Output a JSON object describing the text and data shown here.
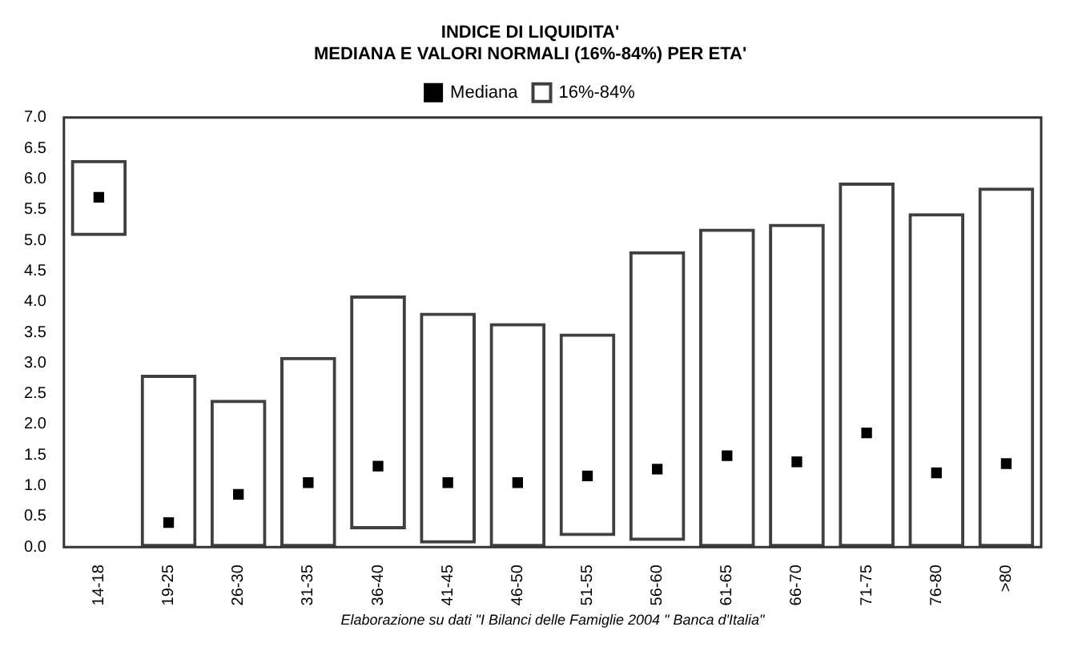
{
  "chart_data": {
    "type": "bar",
    "title": "INDICE DI LIQUIDITA'",
    "subtitle": "MEDIANA E VALORI NORMALI (16%-84%) PER ETA'",
    "categories": [
      "14-18",
      "19-25",
      "26-30",
      "31-35",
      "36-40",
      "41-45",
      "46-50",
      "51-55",
      "56-60",
      "61-65",
      "66-70",
      "71-75",
      "76-80",
      ">80"
    ],
    "series": [
      {
        "name": "Mediana",
        "type": "scatter",
        "color": "#000000",
        "marker": "square",
        "x": [
          "14-18",
          "19-25",
          "26-30",
          "31-35",
          "36-40",
          "41-45",
          "46-50",
          "51-55",
          "56-60",
          "61-65",
          "66-70",
          "71-75",
          "76-80",
          ">80"
        ],
        "values": [
          5.7,
          0.4,
          0.86,
          1.05,
          1.32,
          1.05,
          1.05,
          1.16,
          1.27,
          1.49,
          1.39,
          1.86,
          1.21,
          1.36
        ]
      },
      {
        "name": "16%-84%",
        "color": "#404040",
        "base": [
          5.07,
          0,
          0,
          0,
          0.29,
          0.06,
          0,
          0.18,
          0.1,
          0,
          0,
          0,
          0,
          0
        ],
        "values": [
          1.24,
          2.81,
          2.4,
          3.1,
          3.81,
          3.76,
          3.65,
          3.3,
          4.72,
          5.19,
          5.27,
          5.94,
          5.44,
          5.86
        ]
      }
    ],
    "ylim": [
      0,
      7
    ],
    "yticks": [
      {
        "value": 0,
        "label": "0.0"
      },
      {
        "value": 0.5,
        "label": "0.5"
      },
      {
        "value": 1,
        "label": "1.0"
      },
      {
        "value": 1.5,
        "label": "1.5"
      },
      {
        "value": 2,
        "label": "2.0"
      },
      {
        "value": 2.5,
        "label": "2.5"
      },
      {
        "value": 3,
        "label": "3.0"
      },
      {
        "value": 3.5,
        "label": "3.5"
      },
      {
        "value": 4,
        "label": "4.0"
      },
      {
        "value": 4.5,
        "label": "4.5"
      },
      {
        "value": 5,
        "label": "5.0"
      },
      {
        "value": 5.5,
        "label": "5.5"
      },
      {
        "value": 6,
        "label": "6.0"
      },
      {
        "value": 6.5,
        "label": "6.5"
      },
      {
        "value": 7,
        "label": "7.0"
      }
    ],
    "grid": false,
    "legend": "top",
    "annotations": [
      "Elaborazione su dati \"I Bilanci delle Famiglie 2004 \" Banca d'Italia\""
    ]
  }
}
